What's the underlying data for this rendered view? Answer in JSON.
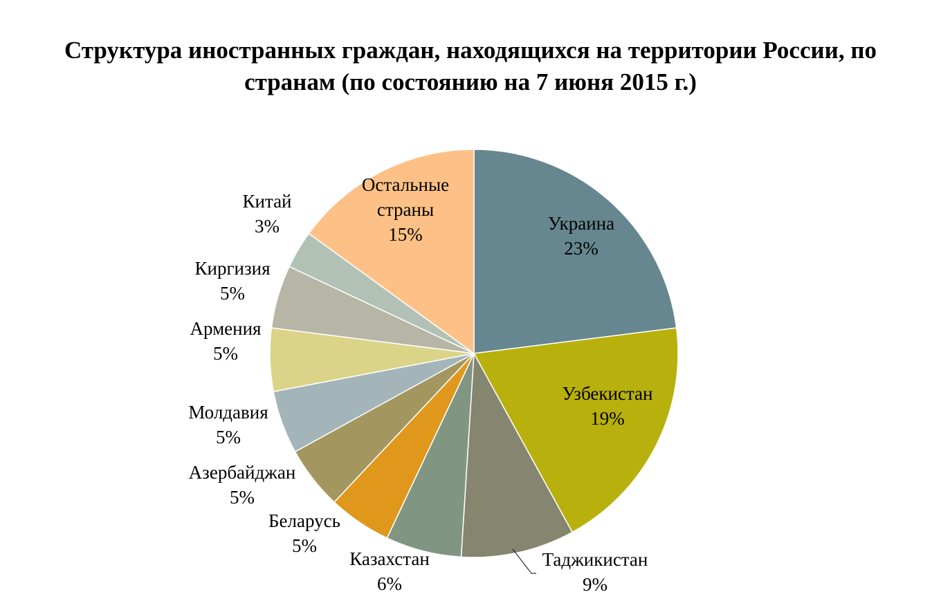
{
  "chart_data": {
    "type": "pie",
    "title_lines": [
      "Структура иностранных граждан, находящихся на территории России,  по",
      "странам (по состоянию на 7 июня 2015 г.)"
    ],
    "slices": [
      {
        "label": "Украина",
        "pct_label": "23%",
        "value": 23,
        "color": "#66878f"
      },
      {
        "label": "Узбекистан",
        "pct_label": "19%",
        "value": 19,
        "color": "#b8b00c"
      },
      {
        "label": "Таджикистан",
        "pct_label": "9%",
        "value": 9,
        "color": "#858570"
      },
      {
        "label": "Казахстан",
        "pct_label": "6%",
        "value": 6,
        "color": "#809683"
      },
      {
        "label": "Беларусь",
        "pct_label": "5%",
        "value": 5,
        "color": "#e0981c"
      },
      {
        "label": "Азербайджан",
        "pct_label": "5%",
        "value": 5,
        "color": "#a3975f"
      },
      {
        "label": "Молдавия",
        "pct_label": "5%",
        "value": 5,
        "color": "#a4b5ba"
      },
      {
        "label": "Армения",
        "pct_label": "5%",
        "value": 5,
        "color": "#dbd488"
      },
      {
        "label": "Киргизия",
        "pct_label": "5%",
        "value": 5,
        "color": "#b7b5a5"
      },
      {
        "label": "Китай",
        "pct_label": "3%",
        "value": 3,
        "color": "#b2c1b5"
      },
      {
        "label": "Остальные страны",
        "label_lines": [
          "Остальные",
          "страны"
        ],
        "pct_label": "15%",
        "value": 15,
        "color": "#fdc187"
      }
    ]
  }
}
